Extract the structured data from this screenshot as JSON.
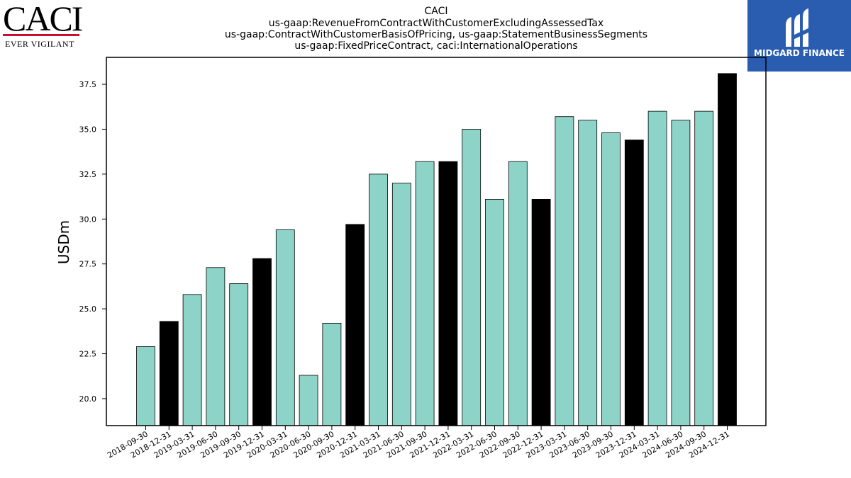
{
  "logo_left": {
    "word": "CACI",
    "tagline": "EVER VIGILANT"
  },
  "logo_right": {
    "name": "MIDGARD FINANCE",
    "icon": "midgard-m-icon"
  },
  "colors": {
    "bar_default": "#8dd3c7",
    "bar_highlight": "#000000",
    "bar_edge": "#000000",
    "brand_blue": "#2a5db0",
    "caci_red": "#c8102e"
  },
  "chart_data": {
    "type": "bar",
    "title": [
      "CACI",
      "us-gaap:RevenueFromContractWithCustomerExcludingAssessedTax",
      "us-gaap:ContractWithCustomerBasisOfPricing, us-gaap:StatementBusinessSegments",
      "us-gaap:FixedPriceContract, caci:InternationalOperations"
    ],
    "xlabel": "",
    "ylabel": "USDm",
    "ylim": [
      18.5,
      39.0
    ],
    "yticks": [
      20.0,
      22.5,
      25.0,
      27.5,
      30.0,
      32.5,
      35.0,
      37.5
    ],
    "ytick_labels": [
      "20.0",
      "22.5",
      "25.0",
      "27.5",
      "30.0",
      "32.5",
      "35.0",
      "37.5"
    ],
    "categories": [
      "2018-09-30",
      "2018-12-31",
      "2019-03-31",
      "2019-06-30",
      "2019-09-30",
      "2019-12-31",
      "2020-03-31",
      "2020-06-30",
      "2020-09-30",
      "2020-12-31",
      "2021-03-31",
      "2021-06-30",
      "2021-09-30",
      "2021-12-31",
      "2022-03-31",
      "2022-06-30",
      "2022-09-30",
      "2022-12-31",
      "2023-03-31",
      "2023-06-30",
      "2023-09-30",
      "2023-12-31",
      "2024-03-31",
      "2024-06-30",
      "2024-09-30",
      "2024-12-31"
    ],
    "values": [
      22.9,
      24.3,
      25.8,
      27.3,
      26.4,
      27.8,
      29.4,
      21.3,
      24.2,
      29.7,
      32.5,
      32.0,
      33.2,
      33.2,
      35.0,
      31.1,
      33.2,
      31.1,
      35.7,
      35.5,
      34.8,
      34.4,
      36.0,
      35.5,
      36.0,
      38.1
    ],
    "highlighted": [
      false,
      true,
      false,
      false,
      false,
      true,
      false,
      false,
      false,
      true,
      false,
      false,
      false,
      true,
      false,
      false,
      false,
      true,
      false,
      false,
      false,
      true,
      false,
      false,
      false,
      true
    ],
    "grid": false,
    "legend": "none"
  }
}
